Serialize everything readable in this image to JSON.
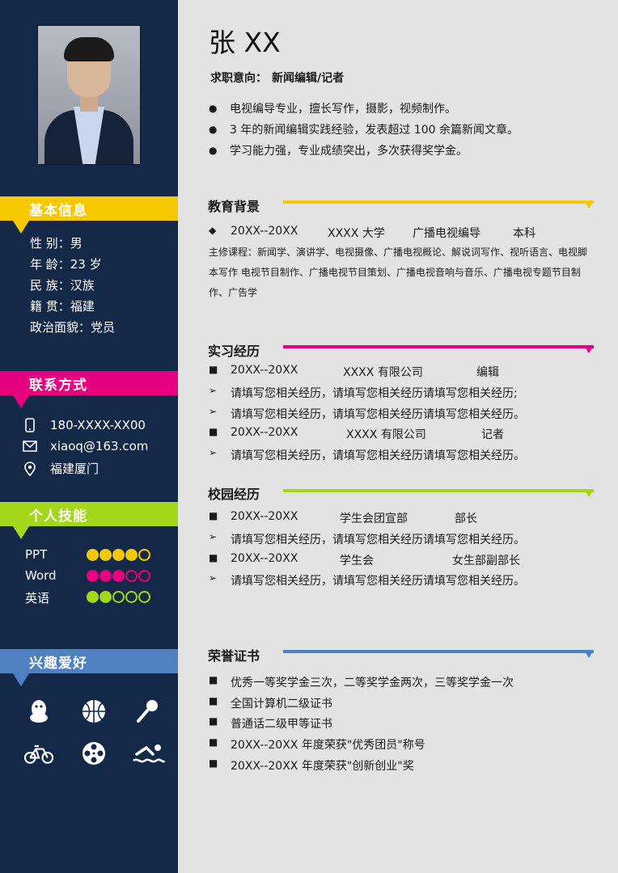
{
  "colors": {
    "sidebar": "#142848",
    "yellow": "#f5c800",
    "magenta": "#e6007e",
    "green": "#a4d71a",
    "blue": "#4f81c2",
    "main_bg": "#e3e3e3"
  },
  "header": {
    "name": "张 XX",
    "intent_label": "求职意向：",
    "intent_value": "新闻编辑/记者"
  },
  "summary": [
    "电视编导专业，擅长写作，摄影，视频制作。",
    "3 年的新闻编辑实践经验，发表超过 100 余篇新闻文章。",
    "学习能力强，专业成绩突出，多次获得奖学金。"
  ],
  "sidebar": {
    "basic_title": "基本信息",
    "basic": [
      "性 别：男",
      "年 龄：23 岁",
      "民 族：汉族",
      "籍 贯：福建",
      "政治面貌：党员"
    ],
    "contact_title": "联系方式",
    "contact": [
      {
        "icon": "phone-icon",
        "text": "180-XXXX-XX00"
      },
      {
        "icon": "mail-icon",
        "text": "xiaoq@163.com"
      },
      {
        "icon": "location-icon",
        "text": "福建厦门"
      }
    ],
    "skills_title": "个人技能",
    "skills": [
      {
        "name": "PPT",
        "level": 4,
        "max": 5,
        "color": "#f5c800"
      },
      {
        "name": "Word",
        "level": 3,
        "max": 5,
        "color": "#e6007e"
      },
      {
        "name": "英语",
        "level": 2,
        "max": 5,
        "color": "#a4d71a"
      }
    ],
    "hobby_title": "兴趣爱好",
    "hobbies": [
      "qq-icon",
      "basketball-icon",
      "microphone-icon",
      "bicycle-icon",
      "film-reel-icon",
      "swimming-icon"
    ]
  },
  "education": {
    "title": "教育背景",
    "period": "20XX--20XX",
    "school": "XXXX 大学",
    "major": "广播电视编导",
    "degree": "本科",
    "courses": "主修课程：新闻学、演讲学、电视摄像、广播电视概论、解说词写作、视听语言、电视脚本写作 电视节目制作、广播电视节目策划、广播电视音响与音乐、广播电视专题节目制作、广告学"
  },
  "internship": {
    "title": "实习经历",
    "entries": [
      {
        "period": "20XX--20XX",
        "org": "XXXX 有限公司",
        "role": "编辑",
        "details": [
          "请填写您相关经历，请填写您相关经历请填写您相关经历;",
          "请填写您相关经历，请填写您相关经历请填写您相关经历。"
        ]
      },
      {
        "period": "20XX--20XX",
        "org": "XXXX 有限公司",
        "role": "记者",
        "details": [
          "请填写您相关经历，请填写您相关经历请填写您相关经历。"
        ]
      }
    ]
  },
  "campus": {
    "title": "校园经历",
    "entries": [
      {
        "period": "20XX--20XX",
        "org": "学生会团宣部",
        "role": "部长",
        "details": [
          "请填写您相关经历，请填写您相关经历请填写您相关经历。"
        ]
      },
      {
        "period": "20XX--20XX",
        "org": "学生会",
        "role": "女生部副部长",
        "details": [
          "请填写您相关经历，请填写您相关经历请填写您相关经历。"
        ]
      }
    ]
  },
  "honors": {
    "title": "荣誉证书",
    "items": [
      "优秀一等奖学金三次，二等奖学金两次，三等奖学金一次",
      "全国计算机二级证书",
      "普通话二级甲等证书",
      "20XX--20XX 年度荣获\"优秀团员\"称号",
      "20XX--20XX 年度荣获\"创新创业\"奖"
    ]
  }
}
